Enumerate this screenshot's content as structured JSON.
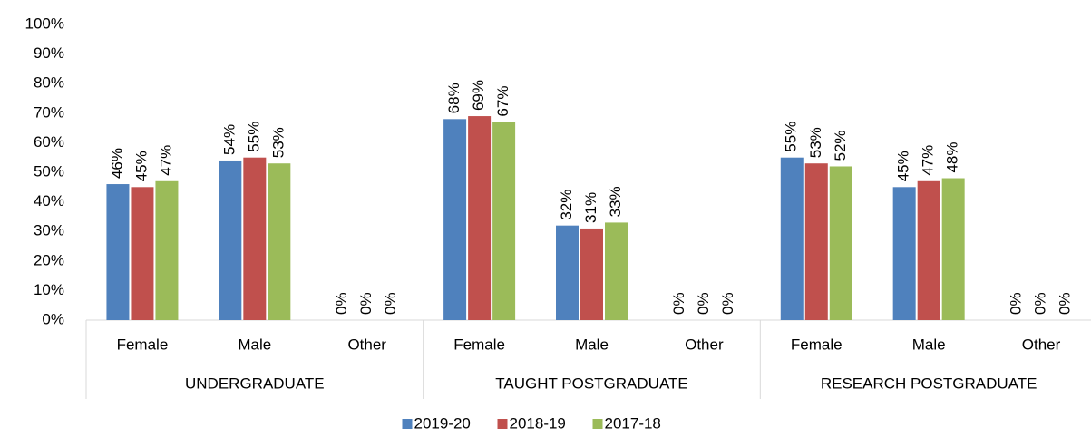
{
  "chart_data": {
    "type": "bar",
    "groups": [
      "UNDERGRADUATE",
      "TAUGHT POSTGRADUATE",
      "RESEARCH POSTGRADUATE"
    ],
    "categories": [
      "Female",
      "Male",
      "Other",
      "Female",
      "Male",
      "Other",
      "Female",
      "Male",
      "Other"
    ],
    "series": [
      {
        "name": "2019-20",
        "color": "#4f81bd",
        "values": [
          46,
          54,
          0,
          68,
          32,
          0,
          55,
          45,
          0
        ],
        "value_labels": [
          "46%",
          "54%",
          "0%",
          "68%",
          "32%",
          "0%",
          "55%",
          "45%",
          "0%"
        ]
      },
      {
        "name": "2018-19",
        "color": "#c0504d",
        "values": [
          45,
          55,
          0,
          69,
          31,
          0,
          53,
          47,
          0
        ],
        "value_labels": [
          "45%",
          "55%",
          "0%",
          "69%",
          "31%",
          "0%",
          "53%",
          "47%",
          "0%"
        ]
      },
      {
        "name": "2017-18",
        "color": "#9bbb59",
        "values": [
          47,
          53,
          0,
          67,
          33,
          0,
          52,
          48,
          0
        ],
        "value_labels": [
          "47%",
          "53%",
          "0%",
          "67%",
          "33%",
          "0%",
          "52%",
          "48%",
          "0%"
        ]
      }
    ],
    "ylim": [
      0,
      100
    ],
    "yticks": [
      {
        "value": 0,
        "label": "0%"
      },
      {
        "value": 10,
        "label": "10%"
      },
      {
        "value": 20,
        "label": "20%"
      },
      {
        "value": 30,
        "label": "30%"
      },
      {
        "value": 40,
        "label": "40%"
      },
      {
        "value": 50,
        "label": "50%"
      },
      {
        "value": 60,
        "label": "60%"
      },
      {
        "value": 70,
        "label": "70%"
      },
      {
        "value": 80,
        "label": "80%"
      },
      {
        "value": 90,
        "label": "90%"
      },
      {
        "value": 100,
        "label": "100%"
      }
    ],
    "grid": false,
    "legend": "bottom"
  }
}
